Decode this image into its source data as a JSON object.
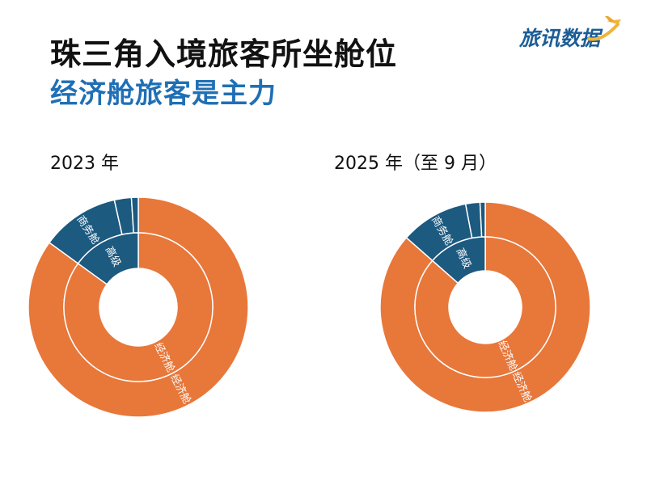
{
  "header": {
    "title_line1": "珠三角入境旅客所坐舱位",
    "title_line2": "经济舱旅客是主力",
    "logo_text": "旅讯数据",
    "logo_icon": "airplane-icon"
  },
  "colors": {
    "economy": "#e8773a",
    "premium": "#1c5a80",
    "title_accent": "#1f6fb5",
    "logo": "#1c5d96"
  },
  "chart_data": [
    {
      "type": "pie",
      "title": "2023 年",
      "style": "nested-donut",
      "outer_ring": [
        {
          "label": "经济舱",
          "value": 85
        },
        {
          "label": "商务舱",
          "value": 11.5
        },
        {
          "label": "",
          "value": 2.5
        },
        {
          "label": "",
          "value": 1
        }
      ],
      "inner_ring": [
        {
          "label": "经济舱",
          "value": 85
        },
        {
          "label": "高级",
          "value": 15
        }
      ]
    },
    {
      "type": "pie",
      "title": "2025 年（至 9 月）",
      "style": "nested-donut",
      "outer_ring": [
        {
          "label": "经济舱",
          "value": 86.5
        },
        {
          "label": "商务舱",
          "value": 10.5
        },
        {
          "label": "",
          "value": 2.2
        },
        {
          "label": "",
          "value": 0.8
        }
      ],
      "inner_ring": [
        {
          "label": "经济舱",
          "value": 86.5
        },
        {
          "label": "高级",
          "value": 13.5
        }
      ]
    }
  ]
}
